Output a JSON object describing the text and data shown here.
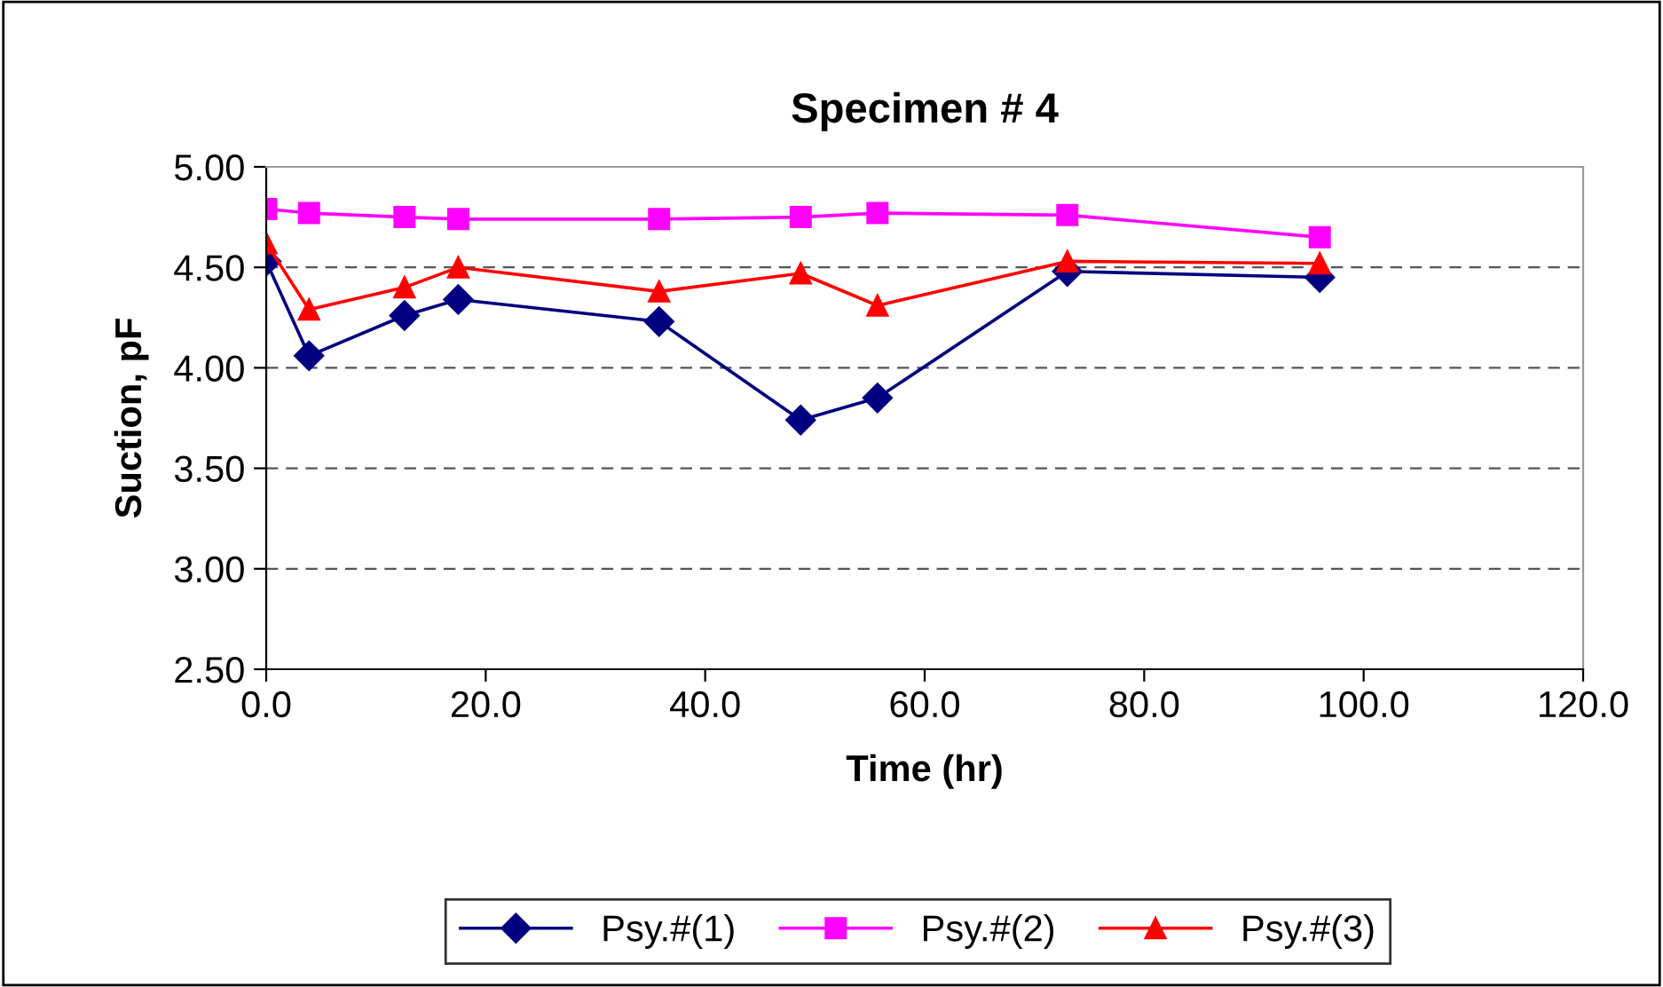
{
  "chart_data": {
    "type": "line",
    "title": "Specimen # 4",
    "xlabel": "Time (hr)",
    "ylabel": "Suction, pF",
    "x": [
      0,
      3.9,
      12.6,
      17.5,
      35.8,
      48.7,
      55.7,
      73.0,
      96.0
    ],
    "series": [
      {
        "name": "Psy.#(1)",
        "color": "#000080",
        "marker": "diamond",
        "values": [
          4.53,
          4.06,
          4.26,
          4.34,
          4.23,
          3.74,
          3.85,
          4.48,
          4.45
        ]
      },
      {
        "name": "Psy.#(2)",
        "color": "#ff00ff",
        "marker": "square",
        "values": [
          4.79,
          4.77,
          4.75,
          4.74,
          4.74,
          4.75,
          4.77,
          4.76,
          4.65
        ]
      },
      {
        "name": "Psy.#(3)",
        "color": "#ff0000",
        "marker": "triangle",
        "values": [
          4.62,
          4.29,
          4.4,
          4.5,
          4.38,
          4.47,
          4.31,
          4.53,
          4.52
        ]
      }
    ],
    "xlim": [
      0,
      120
    ],
    "xticks": [
      {
        "value": 0,
        "label": "0.0"
      },
      {
        "value": 20,
        "label": "20.0"
      },
      {
        "value": 40,
        "label": "40.0"
      },
      {
        "value": 60,
        "label": "60.0"
      },
      {
        "value": 80,
        "label": "80.0"
      },
      {
        "value": 100,
        "label": "100.0"
      },
      {
        "value": 120,
        "label": "120.0"
      }
    ],
    "ylim": [
      2.5,
      5.0
    ],
    "yticks": [
      {
        "value": 2.5,
        "label": "2.50"
      },
      {
        "value": 3.0,
        "label": "3.00"
      },
      {
        "value": 3.5,
        "label": "3.50"
      },
      {
        "value": 4.0,
        "label": "4.00"
      },
      {
        "value": 4.5,
        "label": "4.50"
      },
      {
        "value": 5.0,
        "label": "5.00"
      }
    ],
    "grid": "y",
    "legend": "bottom",
    "line_style": "solid"
  }
}
